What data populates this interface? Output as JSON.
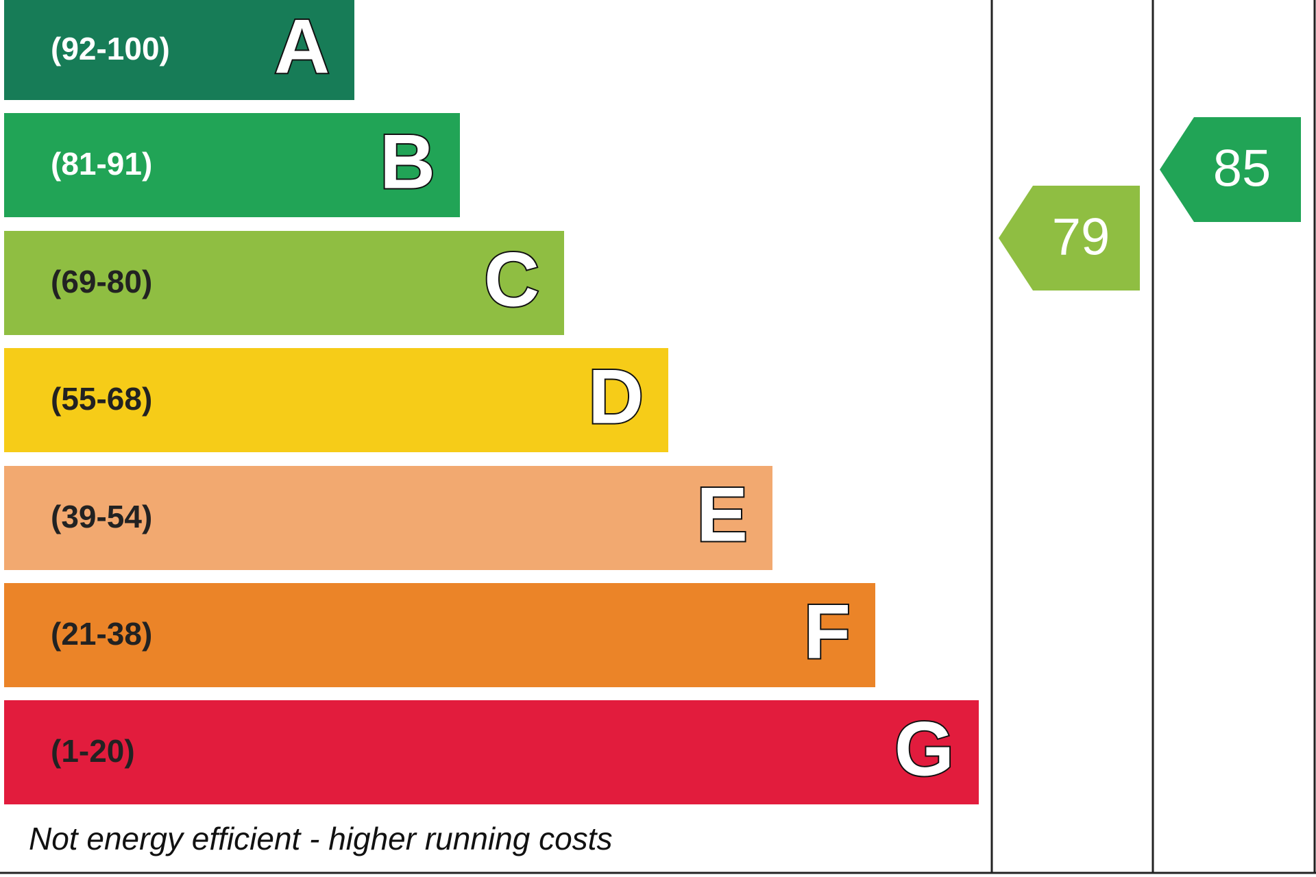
{
  "bands": [
    {
      "range": "(92-100)",
      "letter": "A",
      "color": "#177c57"
    },
    {
      "range": "(81-91)",
      "letter": "B",
      "color": "#21a456"
    },
    {
      "range": "(69-80)",
      "letter": "C",
      "color": "#8fbe42"
    },
    {
      "range": "(55-68)",
      "letter": "D",
      "color": "#f6cc18"
    },
    {
      "range": "(39-54)",
      "letter": "E",
      "color": "#f2a970"
    },
    {
      "range": "(21-38)",
      "letter": "F",
      "color": "#eb8428"
    },
    {
      "range": "(1-20)",
      "letter": "G",
      "color": "#e21c3d"
    }
  ],
  "footer": "Not energy efficient - higher running costs",
  "ratings": [
    {
      "value": 79,
      "color": "#8fbe42"
    },
    {
      "value": 85,
      "color": "#21a456"
    }
  ]
}
